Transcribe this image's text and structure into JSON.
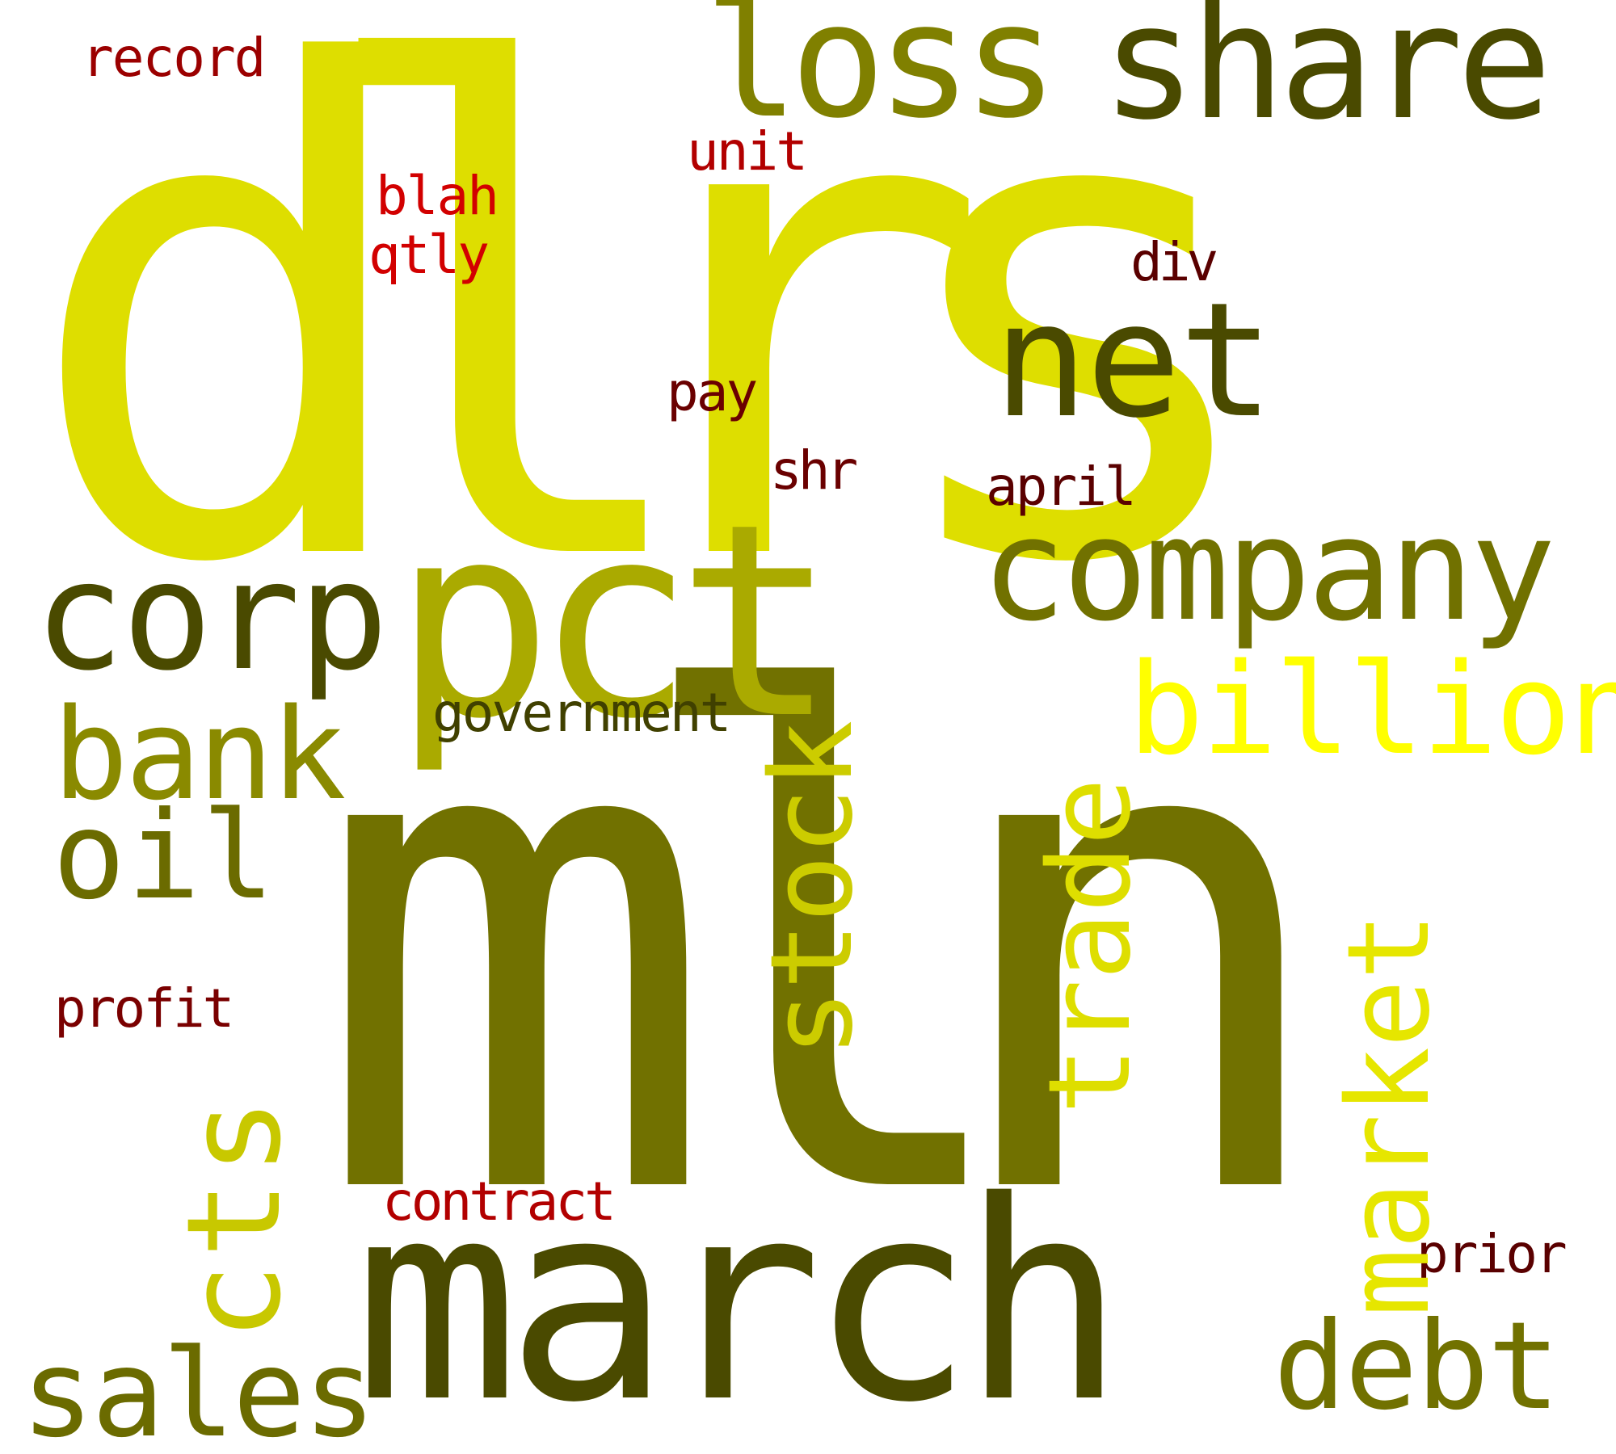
{
  "words": {
    "dlrs": {
      "text": "dlrs",
      "color": "#dede00"
    },
    "mln": {
      "text": "mln",
      "color": "#717100"
    },
    "march": {
      "text": "march",
      "color": "#4a4a00"
    },
    "pct": {
      "text": "pct",
      "color": "#aaaa00"
    },
    "loss": {
      "text": "loss",
      "color": "#808000"
    },
    "share": {
      "text": "share",
      "color": "#4a4a00"
    },
    "net": {
      "text": "net",
      "color": "#4a4a00"
    },
    "company": {
      "text": "company",
      "color": "#717100"
    },
    "corp": {
      "text": "corp",
      "color": "#4a4a00"
    },
    "billion": {
      "text": "billion",
      "color": "#ffff00"
    },
    "bank": {
      "text": "bank",
      "color": "#8a8a00"
    },
    "oil": {
      "text": "oil",
      "color": "#6b6b00"
    },
    "stock": {
      "text": "stock",
      "color": "#cccc00"
    },
    "trade": {
      "text": "trade",
      "color": "#dede00"
    },
    "market": {
      "text": "market",
      "color": "#e6e600"
    },
    "cts": {
      "text": "cts",
      "color": "#c8c800"
    },
    "sales": {
      "text": "sales",
      "color": "#6b6b00"
    },
    "debt": {
      "text": "debt",
      "color": "#717100"
    },
    "government": {
      "text": "government",
      "color": "#404000"
    },
    "record": {
      "text": "record",
      "color": "#9b0000"
    },
    "unit": {
      "text": "unit",
      "color": "#b20000"
    },
    "blah": {
      "text": "blah",
      "color": "#d20000"
    },
    "qtly": {
      "text": "qtly",
      "color": "#d20000"
    },
    "div": {
      "text": "div",
      "color": "#5a0000"
    },
    "pay": {
      "text": "pay",
      "color": "#6a0000"
    },
    "shr": {
      "text": "shr",
      "color": "#6a0000"
    },
    "april": {
      "text": "april",
      "color": "#5a0000"
    },
    "profit": {
      "text": "profit",
      "color": "#7a0000"
    },
    "contract": {
      "text": "contract",
      "color": "#b20000"
    },
    "prior": {
      "text": "prior",
      "color": "#5a0000"
    }
  }
}
